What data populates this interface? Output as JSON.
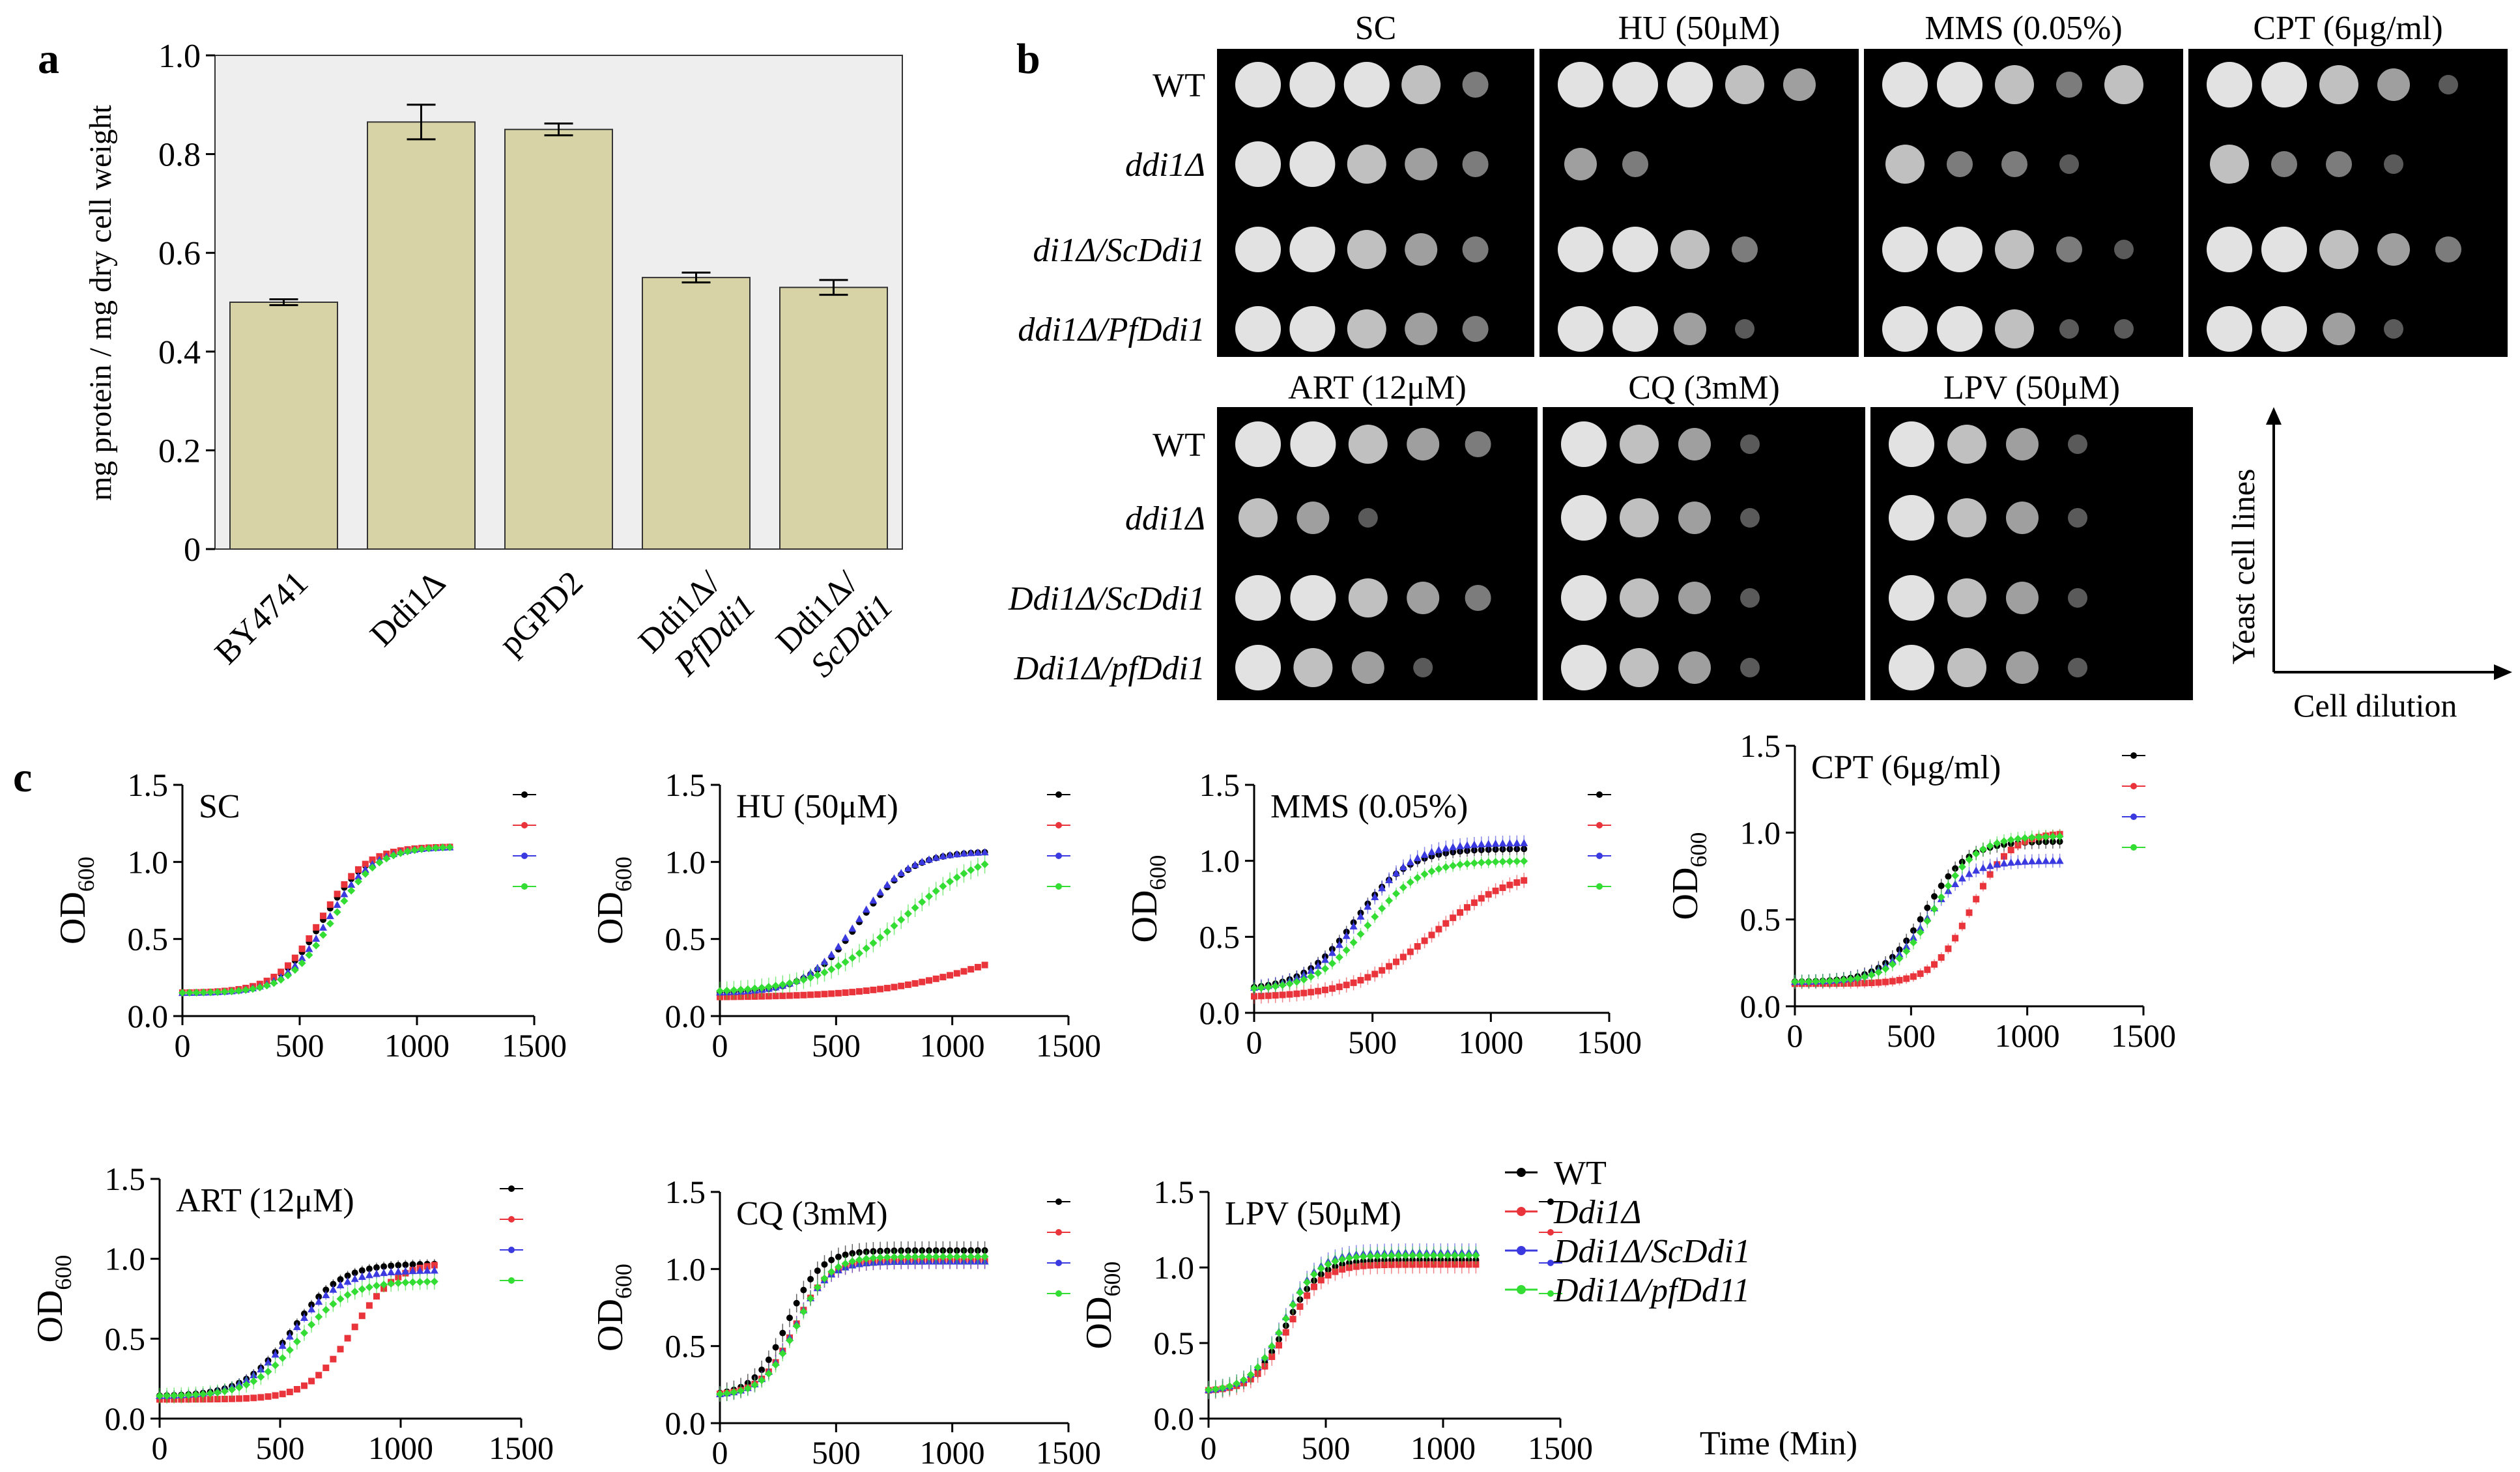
{
  "panel_labels": [
    "a",
    "b",
    "c"
  ],
  "colors": {
    "bar_fill": "#d8d3a6",
    "plot_bg": "#eeeeee",
    "series": [
      "#000000",
      "#e8343a",
      "#3a3ae0",
      "#33dd33"
    ],
    "plate_bg": "#000000",
    "colony": "#e2e2e2"
  },
  "chart_data": [
    {
      "id": "bar",
      "type": "bar",
      "title": "",
      "ylabel": "mg protein / mg dry cell weight",
      "xlabel": "",
      "ylim": [
        0,
        1.0
      ],
      "yticks": [
        "0",
        "0.2",
        "0.4",
        "0.6",
        "0.8",
        "1.0"
      ],
      "ytick_values": [
        0,
        0.2,
        0.4,
        0.6,
        0.8,
        1.0
      ],
      "categories": [
        [
          "BY4741"
        ],
        [
          "Ddi1Δ"
        ],
        [
          "pGPD2"
        ],
        [
          "Ddi1Δ/",
          "PfDdi1"
        ],
        [
          "Ddi1Δ/",
          "ScDdi1"
        ]
      ],
      "values": [
        0.5,
        0.865,
        0.85,
        0.55,
        0.53
      ],
      "errors": [
        0.006,
        0.035,
        0.012,
        0.01,
        0.015
      ]
    },
    {
      "id": "growth",
      "type": "line",
      "ylabel_main": "OD",
      "ylabel_sub": "600",
      "xlabel": "Time (Min)",
      "xlim": [
        0,
        1500
      ],
      "xticks": [
        "0",
        "500",
        "1000",
        "1500"
      ],
      "yticks": [
        "0.0",
        "0.5",
        "1.0",
        "1.5"
      ],
      "legend": [
        "WT",
        "Ddi1Δ",
        "Ddi1Δ/ScDdi1",
        "Ddi1Δ/pfDd11"
      ],
      "subplots": [
        {
          "title": "SC",
          "ylim": [
            0,
            1.5
          ],
          "series": [
            {
              "name": "WT",
              "base": 0.15,
              "max": 1.1,
              "mid": 600,
              "k": 0.0105,
              "sd": 0.015
            },
            {
              "name": "Ddi1Δ",
              "base": 0.15,
              "max": 1.1,
              "mid": 590,
              "k": 0.0105,
              "sd": 0.015
            },
            {
              "name": "Ddi1Δ/ScDdi1",
              "base": 0.15,
              "max": 1.1,
              "mid": 620,
              "k": 0.0105,
              "sd": 0.02
            },
            {
              "name": "Ddi1Δ/pfDd11",
              "base": 0.15,
              "max": 1.1,
              "mid": 640,
              "k": 0.0105,
              "sd": 0.02
            }
          ]
        },
        {
          "title": "HU (50μM)",
          "ylim": [
            0,
            1.5
          ],
          "series": [
            {
              "name": "WT",
              "base": 0.15,
              "max": 1.07,
              "mid": 600,
              "k": 0.009,
              "sd": 0.015
            },
            {
              "name": "Ddi1Δ",
              "base": 0.12,
              "max": 0.6,
              "mid": 1200,
              "k": 0.004,
              "sd": 0.01
            },
            {
              "name": "Ddi1Δ/ScDdi1",
              "base": 0.15,
              "max": 1.07,
              "mid": 590,
              "k": 0.009,
              "sd": 0.02
            },
            {
              "name": "Ddi1Δ/pfDd11",
              "base": 0.15,
              "max": 1.1,
              "mid": 780,
              "k": 0.0055,
              "sd": 0.06
            }
          ]
        },
        {
          "title": "MMS (0.05%)",
          "ylim": [
            0,
            1.5
          ],
          "series": [
            {
              "name": "WT",
              "base": 0.15,
              "max": 1.08,
              "mid": 430,
              "k": 0.009,
              "sd": 0.04
            },
            {
              "name": "Ddi1Δ",
              "base": 0.1,
              "max": 0.95,
              "mid": 760,
              "k": 0.006,
              "sd": 0.05
            },
            {
              "name": "Ddi1Δ/ScDdi1",
              "base": 0.15,
              "max": 1.12,
              "mid": 450,
              "k": 0.009,
              "sd": 0.05
            },
            {
              "name": "Ddi1Δ/pfDd11",
              "base": 0.15,
              "max": 1.0,
              "mid": 480,
              "k": 0.009,
              "sd": 0.04
            }
          ]
        },
        {
          "title": "CPT (6μg/ml)",
          "ylim": [
            0,
            1.5
          ],
          "series": [
            {
              "name": "WT",
              "base": 0.14,
              "max": 0.95,
              "mid": 560,
              "k": 0.011,
              "sd": 0.04
            },
            {
              "name": "Ddi1Δ",
              "base": 0.13,
              "max": 1.0,
              "mid": 760,
              "k": 0.012,
              "sd": 0.03
            },
            {
              "name": "Ddi1Δ/ScDdi1",
              "base": 0.14,
              "max": 0.84,
              "mid": 560,
              "k": 0.011,
              "sd": 0.04
            },
            {
              "name": "Ddi1Δ/pfDd11",
              "base": 0.14,
              "max": 0.98,
              "mid": 600,
              "k": 0.011,
              "sd": 0.04
            }
          ]
        },
        {
          "title": "ART (12μM)",
          "ylim": [
            0,
            1.5
          ],
          "series": [
            {
              "name": "WT",
              "base": 0.14,
              "max": 0.97,
              "mid": 550,
              "k": 0.01,
              "sd": 0.03
            },
            {
              "name": "Ddi1Δ",
              "base": 0.12,
              "max": 0.98,
              "mid": 800,
              "k": 0.011,
              "sd": 0.02
            },
            {
              "name": "Ddi1Δ/ScDdi1",
              "base": 0.14,
              "max": 0.93,
              "mid": 550,
              "k": 0.01,
              "sd": 0.03
            },
            {
              "name": "Ddi1Δ/pfDd11",
              "base": 0.14,
              "max": 0.86,
              "mid": 580,
              "k": 0.01,
              "sd": 0.05
            }
          ]
        },
        {
          "title": "CQ (3mM)",
          "ylim": [
            0,
            1.5
          ],
          "series": [
            {
              "name": "WT",
              "base": 0.18,
              "max": 1.12,
              "mid": 290,
              "k": 0.014,
              "sd": 0.06
            },
            {
              "name": "Ddi1Δ",
              "base": 0.18,
              "max": 1.05,
              "mid": 320,
              "k": 0.014,
              "sd": 0.05
            },
            {
              "name": "Ddi1Δ/ScDdi1",
              "base": 0.18,
              "max": 1.05,
              "mid": 320,
              "k": 0.014,
              "sd": 0.05
            },
            {
              "name": "Ddi1Δ/pfDd11",
              "base": 0.18,
              "max": 1.08,
              "mid": 330,
              "k": 0.014,
              "sd": 0.05
            }
          ]
        },
        {
          "title": "LPV (50μM)",
          "ylim": [
            0,
            1.5
          ],
          "series": [
            {
              "name": "WT",
              "base": 0.18,
              "max": 1.05,
              "mid": 330,
              "k": 0.014,
              "sd": 0.05
            },
            {
              "name": "Ddi1Δ",
              "base": 0.18,
              "max": 1.02,
              "mid": 340,
              "k": 0.014,
              "sd": 0.06
            },
            {
              "name": "Ddi1Δ/ScDdi1",
              "base": 0.18,
              "max": 1.1,
              "mid": 320,
              "k": 0.014,
              "sd": 0.06
            },
            {
              "name": "Ddi1Δ/pfDd11",
              "base": 0.18,
              "max": 1.08,
              "mid": 320,
              "k": 0.014,
              "sd": 0.06
            }
          ]
        }
      ]
    }
  ],
  "spot_assay": {
    "top_conditions": [
      "SC",
      "HU (50μM)",
      "MMS (0.05%)",
      "CPT (6μg/ml)"
    ],
    "top_rows": [
      "WT",
      "ddi1Δ",
      "di1Δ/ScDdi1",
      "ddi1Δ/PfDdi1"
    ],
    "bottom_conditions": [
      "ART (12μM)",
      "CQ (3mM)",
      "LPV (50μM)"
    ],
    "bottom_rows": [
      "WT",
      "ddi1Δ",
      "Ddi1Δ/ScDdi1",
      "Ddi1Δ/pfDdi1"
    ],
    "top_growth": [
      [
        [
          5,
          5,
          5,
          4,
          2
        ],
        [
          5,
          5,
          4,
          3,
          2
        ],
        [
          5,
          5,
          4,
          3,
          2
        ],
        [
          5,
          5,
          4,
          3,
          2
        ]
      ],
      [
        [
          5,
          5,
          5,
          4,
          3
        ],
        [
          3,
          2,
          0,
          0,
          0
        ],
        [
          5,
          5,
          4,
          2,
          0
        ],
        [
          5,
          5,
          3,
          1,
          0
        ]
      ],
      [
        [
          5,
          5,
          4,
          2,
          4
        ],
        [
          4,
          2,
          2,
          1,
          0
        ],
        [
          5,
          5,
          4,
          2,
          1
        ],
        [
          5,
          5,
          4,
          1,
          1
        ]
      ],
      [
        [
          5,
          5,
          4,
          3,
          1
        ],
        [
          4,
          2,
          2,
          1,
          0
        ],
        [
          5,
          5,
          4,
          3,
          2
        ],
        [
          5,
          5,
          3,
          1,
          0
        ]
      ]
    ],
    "bottom_growth": [
      [
        [
          5,
          5,
          4,
          3,
          2
        ],
        [
          4,
          3,
          1,
          0,
          0
        ],
        [
          5,
          5,
          4,
          3,
          2
        ],
        [
          5,
          4,
          3,
          1,
          0
        ]
      ],
      [
        [
          5,
          4,
          3,
          1,
          0
        ],
        [
          5,
          4,
          3,
          1,
          0
        ],
        [
          5,
          4,
          3,
          1,
          0
        ],
        [
          5,
          4,
          3,
          1,
          0
        ]
      ],
      [
        [
          5,
          4,
          3,
          1,
          0
        ],
        [
          5,
          4,
          3,
          1,
          0
        ],
        [
          5,
          4,
          3,
          1,
          0
        ],
        [
          5,
          4,
          3,
          1,
          0
        ]
      ]
    ],
    "axis_y_label": "Yeast cell lines",
    "axis_x_label": "Cell dilution"
  }
}
